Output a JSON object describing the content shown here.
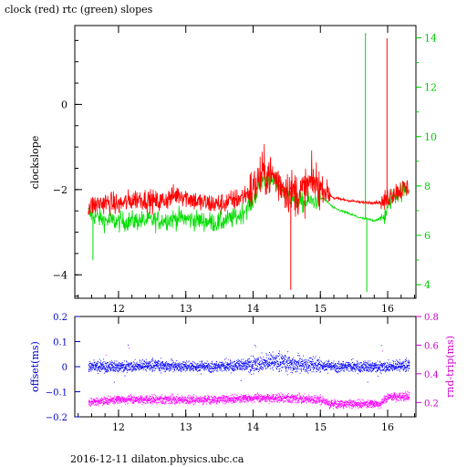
{
  "page": {
    "title": "clock (red) rtc (green) slopes",
    "footer": "2016-12-11  dilaton.physics.ubc.ca"
  },
  "colors": {
    "clock": "#ff0000",
    "rtc": "#00dd00",
    "offset": "#0000ff",
    "rndtrip": "#ff00ff",
    "axis": "#000000",
    "lower_left_axis": "#0000cc",
    "upper_right_axis": "#00cc00",
    "lower_right_axis": "#cc00cc"
  },
  "chart_data": [
    {
      "type": "line",
      "title": "clock (red) rtc (green) slopes",
      "xlabel": "",
      "ylabel": "clockslope",
      "y2label": "",
      "xlim": [
        11.35,
        16.42
      ],
      "ylim": [
        -4.55,
        1.85
      ],
      "y2lim": [
        3.45,
        14.5
      ],
      "x_ticks": [
        12,
        13,
        14,
        15,
        16
      ],
      "y_ticks": [
        0,
        -2,
        -4
      ],
      "y2_ticks": [
        4,
        6,
        8,
        10,
        12,
        14
      ],
      "grid": false,
      "series": [
        {
          "name": "clock (red)",
          "axis": "left",
          "x": [
            11.55,
            11.8,
            12.0,
            12.3,
            12.6,
            12.9,
            13.2,
            13.5,
            13.8,
            14.0,
            14.15,
            14.3,
            14.5,
            14.7,
            14.9,
            15.05,
            15.2,
            15.4,
            15.6,
            15.8,
            15.95,
            16.05,
            16.2,
            16.32
          ],
          "y": [
            -2.4,
            -2.3,
            -2.35,
            -2.2,
            -2.3,
            -2.1,
            -2.3,
            -2.35,
            -2.2,
            -2.0,
            -1.6,
            -1.7,
            -2.0,
            -2.1,
            -1.8,
            -2.0,
            -2.2,
            -2.25,
            -2.3,
            -2.3,
            -2.3,
            -2.1,
            -2.0,
            -1.95
          ],
          "spikes": [
            {
              "x": 14.56,
              "y": -4.35
            },
            {
              "x": 15.99,
              "y": 1.55
            }
          ]
        },
        {
          "name": "rtc (green)",
          "axis": "right",
          "x": [
            11.55,
            11.8,
            12.0,
            12.3,
            12.6,
            12.9,
            13.2,
            13.5,
            13.8,
            14.0,
            14.15,
            14.3,
            14.5,
            14.7,
            14.9,
            15.05,
            15.2,
            15.4,
            15.6,
            15.8,
            15.95,
            16.05,
            16.2,
            16.32
          ],
          "y": [
            6.9,
            6.6,
            6.55,
            6.6,
            6.6,
            6.7,
            6.6,
            6.5,
            6.8,
            7.4,
            8.3,
            8.2,
            7.7,
            7.3,
            7.4,
            7.5,
            7.1,
            6.9,
            6.7,
            6.6,
            6.75,
            7.5,
            7.8,
            7.9
          ],
          "spikes": [
            {
              "x": 11.62,
              "y": 5.0
            },
            {
              "x": 15.67,
              "y": 14.2
            },
            {
              "x": 15.69,
              "y": 3.7
            }
          ]
        }
      ]
    },
    {
      "type": "scatter",
      "xlabel": "",
      "ylabel": "offset(ms)",
      "y2label": "rnd-trip(ms)",
      "xlim": [
        11.35,
        16.42
      ],
      "ylim": [
        -0.2,
        0.2
      ],
      "y2lim": [
        0.1,
        0.8
      ],
      "x_ticks": [
        12,
        13,
        14,
        15,
        16
      ],
      "y_ticks": [
        0.2,
        0.1,
        0,
        -0.1,
        -0.2
      ],
      "y2_ticks": [
        0.2,
        0.4,
        0.6,
        0.8
      ],
      "grid": false,
      "series": [
        {
          "name": "offset(ms)",
          "axis": "left",
          "x": [
            11.55,
            12.0,
            12.5,
            13.0,
            13.5,
            14.0,
            14.3,
            14.6,
            15.0,
            15.2,
            15.6,
            16.0,
            16.32
          ],
          "y": [
            0.0,
            0.0,
            0.005,
            0.0,
            0.0,
            0.01,
            0.02,
            0.01,
            0.005,
            0.0,
            0.0,
            0.0,
            0.005
          ]
        },
        {
          "name": "rnd-trip(ms)",
          "axis": "right",
          "x": [
            11.55,
            12.0,
            12.5,
            13.0,
            13.5,
            14.0,
            14.5,
            15.0,
            15.15,
            15.5,
            15.9,
            16.0,
            16.32
          ],
          "y": [
            0.2,
            0.22,
            0.22,
            0.22,
            0.22,
            0.23,
            0.23,
            0.22,
            0.19,
            0.19,
            0.19,
            0.24,
            0.24
          ]
        }
      ]
    }
  ]
}
